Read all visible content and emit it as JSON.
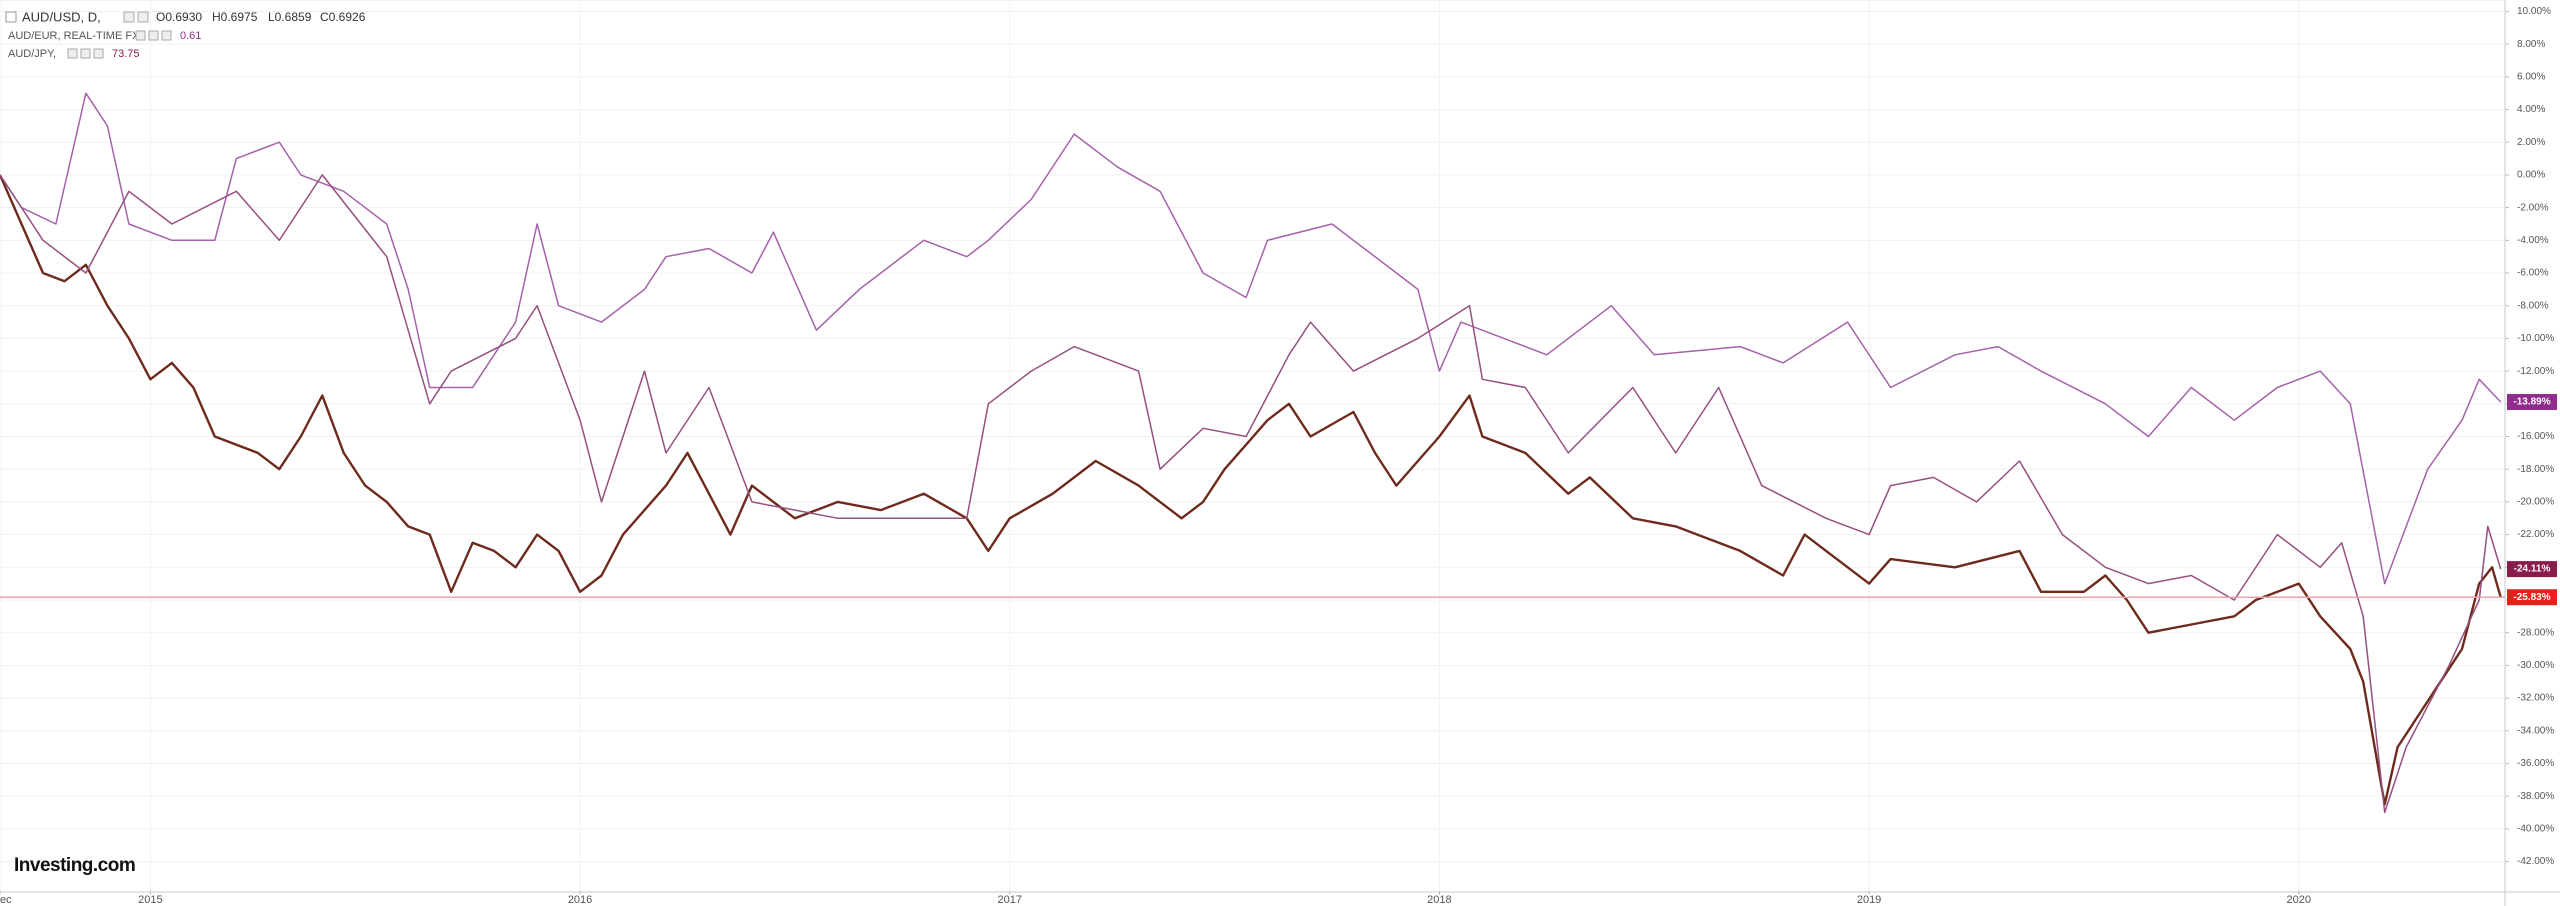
{
  "chart_data": {
    "type": "line",
    "legend": [
      {
        "name": "AUD/USD, D,",
        "ohlc": [
          "O0.6930",
          "H0.6975",
          "L0.6859",
          "C0.6926"
        ]
      },
      {
        "name": "AUD/EUR, REAL-TIME FX",
        "value": "0.61"
      },
      {
        "name": "AUD/JPY,",
        "value": "73.75"
      }
    ],
    "logo": "Investing.com",
    "xlim": [
      2014.65,
      2020.48
    ],
    "xticks": [
      {
        "value": 2014.65,
        "label": "ec"
      },
      2015,
      2016,
      2017,
      2018,
      2019,
      2020
    ],
    "ylim": [
      -43.8,
      10.7
    ],
    "yticks": [
      {
        "value": 10,
        "label": "10.00%"
      },
      {
        "value": 8,
        "label": "8.00%"
      },
      {
        "value": 6,
        "label": "6.00%"
      },
      {
        "value": 4,
        "label": "4.00%"
      },
      {
        "value": 2,
        "label": "2.00%"
      },
      {
        "value": 0,
        "label": "0.00%"
      },
      {
        "value": -2,
        "label": "-2.00%"
      },
      {
        "value": -4,
        "label": "-4.00%"
      },
      {
        "value": -6,
        "label": "-6.00%"
      },
      {
        "value": -8,
        "label": "-8.00%"
      },
      {
        "value": -10,
        "label": "-10.00%"
      },
      {
        "value": -12,
        "label": "-12.00%"
      },
      {
        "value": -14,
        "label": "-14.00%"
      },
      {
        "value": -16,
        "label": "-16.00%"
      },
      {
        "value": -18,
        "label": "-18.00%"
      },
      {
        "value": -20,
        "label": "-20.00%"
      },
      {
        "value": -22,
        "label": "-22.00%"
      },
      {
        "value": -24,
        "label": "-24.00%"
      },
      {
        "value": -26,
        "label": "-26.00%"
      },
      {
        "value": -28,
        "label": "-28.00%"
      },
      {
        "value": -30,
        "label": "-30.00%"
      },
      {
        "value": -32,
        "label": "-32.00%"
      },
      {
        "value": -34,
        "label": "-34.00%"
      },
      {
        "value": -36,
        "label": "-36.00%"
      },
      {
        "value": -38,
        "label": "-38.00%"
      },
      {
        "value": -40,
        "label": "-40.00%"
      },
      {
        "value": -42,
        "label": "-42.00%"
      }
    ],
    "grid": true,
    "series": [
      {
        "name": "AUD/USD",
        "color": "#6e2a1c",
        "label_color": "#e3231b",
        "price_line": "#e9a3ab",
        "end_label": "-25.83%",
        "x": [
          2014.65,
          2014.7,
          2014.75,
          2014.8,
          2014.85,
          2014.9,
          2014.95,
          2015.0,
          2015.05,
          2015.1,
          2015.15,
          2015.25,
          2015.3,
          2015.35,
          2015.4,
          2015.45,
          2015.5,
          2015.55,
          2015.6,
          2015.65,
          2015.7,
          2015.75,
          2015.8,
          2015.85,
          2015.9,
          2015.95,
          2016.0,
          2016.05,
          2016.1,
          2016.2,
          2016.25,
          2016.3,
          2016.35,
          2016.4,
          2016.5,
          2016.6,
          2016.7,
          2016.8,
          2016.9,
          2016.95,
          2017.0,
          2017.1,
          2017.2,
          2017.3,
          2017.4,
          2017.45,
          2017.5,
          2017.55,
          2017.6,
          2017.65,
          2017.7,
          2017.8,
          2017.85,
          2017.9,
          2018.0,
          2018.07,
          2018.1,
          2018.2,
          2018.3,
          2018.35,
          2018.45,
          2018.55,
          2018.7,
          2018.8,
          2018.85,
          2018.9,
          2019.0,
          2019.05,
          2019.2,
          2019.35,
          2019.4,
          2019.5,
          2019.55,
          2019.6,
          2019.65,
          2019.75,
          2019.85,
          2019.9,
          2020.0,
          2020.05,
          2020.12,
          2020.15,
          2020.2,
          2020.23,
          2020.28,
          2020.33,
          2020.38,
          2020.42,
          2020.45,
          2020.47
        ],
        "values": [
          0,
          -3,
          -6,
          -6.5,
          -5.5,
          -8,
          -10,
          -12.5,
          -11.5,
          -13,
          -16,
          -17,
          -18,
          -16,
          -13.5,
          -17,
          -19,
          -20,
          -21.5,
          -22,
          -25.5,
          -22.5,
          -23,
          -24,
          -22,
          -23,
          -25.5,
          -24.5,
          -22,
          -19,
          -17,
          -19.5,
          -22,
          -19,
          -21,
          -20,
          -20.5,
          -19.5,
          -21,
          -23,
          -21,
          -19.5,
          -17.5,
          -19,
          -21,
          -20,
          -18,
          -16.5,
          -15,
          -14,
          -16,
          -14.5,
          -17,
          -19,
          -16,
          -13.5,
          -16,
          -17,
          -19.5,
          -18.5,
          -21,
          -21.5,
          -23,
          -24.5,
          -22,
          -23,
          -25,
          -23.5,
          -24,
          -23,
          -25.5,
          -25.5,
          -24.5,
          -26,
          -28,
          -27.5,
          -27,
          -26,
          -25,
          -27,
          -29,
          -31,
          -38.5,
          -35,
          -33,
          -31,
          -29,
          -25,
          -24,
          -25.83
        ]
      },
      {
        "name": "AUD/EUR",
        "color": "#a661ab",
        "label_color": "#8e2d8e",
        "end_label": "-13.89%",
        "x": [
          2014.65,
          2014.7,
          2014.78,
          2014.85,
          2014.9,
          2014.95,
          2015.05,
          2015.15,
          2015.2,
          2015.3,
          2015.35,
          2015.45,
          2015.55,
          2015.6,
          2015.65,
          2015.75,
          2015.85,
          2015.9,
          2015.95,
          2016.05,
          2016.15,
          2016.2,
          2016.3,
          2016.4,
          2016.45,
          2016.55,
          2016.65,
          2016.8,
          2016.9,
          2016.95,
          2017.05,
          2017.15,
          2017.25,
          2017.35,
          2017.45,
          2017.55,
          2017.6,
          2017.75,
          2017.85,
          2017.95,
          2018.0,
          2018.05,
          2018.15,
          2018.25,
          2018.4,
          2018.5,
          2018.7,
          2018.8,
          2018.95,
          2019.05,
          2019.2,
          2019.3,
          2019.4,
          2019.55,
          2019.65,
          2019.75,
          2019.85,
          2019.95,
          2020.05,
          2020.12,
          2020.2,
          2020.3,
          2020.38,
          2020.42,
          2020.47
        ],
        "values": [
          0,
          -2,
          -3,
          5,
          3,
          -3,
          -4,
          -4,
          1,
          2,
          0,
          -1,
          -3,
          -7,
          -13,
          -13,
          -9,
          -3,
          -8,
          -9,
          -7,
          -5,
          -4.5,
          -6,
          -3.5,
          -9.5,
          -7,
          -4,
          -5,
          -4,
          -1.5,
          2.5,
          0.5,
          -1,
          -6,
          -7.5,
          -4,
          -3,
          -5,
          -7,
          -12,
          -9,
          -10,
          -11,
          -8,
          -11,
          -10.5,
          -11.5,
          -9,
          -13,
          -11,
          -10.5,
          -12,
          -14,
          -16,
          -13,
          -15,
          -13,
          -12,
          -14,
          -25,
          -18,
          -15,
          -12.5,
          -13.89
        ]
      },
      {
        "name": "AUD/JPY",
        "color": "#96507f",
        "label_color": "#8a1c4c",
        "end_label": "-24.11%",
        "x": [
          2014.65,
          2014.75,
          2014.85,
          2014.95,
          2015.05,
          2015.2,
          2015.3,
          2015.4,
          2015.55,
          2015.65,
          2015.7,
          2015.85,
          2015.9,
          2016.0,
          2016.05,
          2016.15,
          2016.2,
          2016.3,
          2016.4,
          2016.6,
          2016.9,
          2016.95,
          2017.05,
          2017.15,
          2017.3,
          2017.35,
          2017.45,
          2017.55,
          2017.65,
          2017.7,
          2017.8,
          2017.95,
          2018.07,
          2018.1,
          2018.2,
          2018.3,
          2018.45,
          2018.55,
          2018.65,
          2018.75,
          2018.9,
          2019.0,
          2019.05,
          2019.15,
          2019.25,
          2019.35,
          2019.45,
          2019.55,
          2019.65,
          2019.75,
          2019.85,
          2019.95,
          2020.05,
          2020.1,
          2020.15,
          2020.2,
          2020.25,
          2020.35,
          2020.42,
          2020.44,
          2020.47
        ],
        "values": [
          0,
          -4,
          -6,
          -1,
          -3,
          -1,
          -4,
          0,
          -5,
          -14,
          -12,
          -10,
          -8,
          -15,
          -20,
          -12,
          -17,
          -13,
          -20,
          -21,
          -21,
          -14,
          -12,
          -10.5,
          -12,
          -18,
          -15.5,
          -16,
          -11,
          -9,
          -12,
          -10,
          -8,
          -12.5,
          -13,
          -17,
          -13,
          -17,
          -13,
          -19,
          -21,
          -22,
          -19,
          -18.5,
          -20,
          -17.5,
          -22,
          -24,
          -25,
          -24.5,
          -26,
          -22,
          -24,
          -22.5,
          -27,
          -39,
          -35,
          -30,
          -26,
          -21.5,
          -24.11
        ]
      }
    ]
  }
}
